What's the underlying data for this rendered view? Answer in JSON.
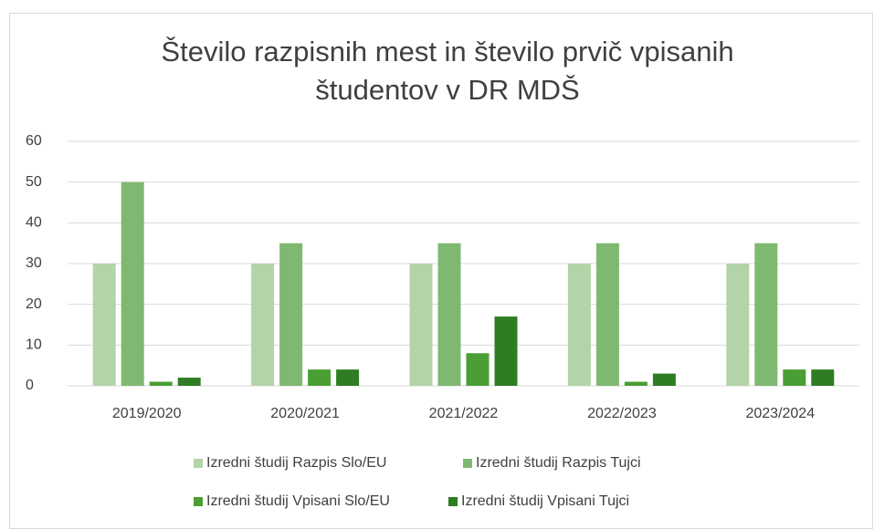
{
  "chart_data": {
    "type": "bar",
    "title": "Število razpisnih mest in število prvič vpisanih študentov v DR MDŠ",
    "categories": [
      "2019/2020",
      "2020/2021",
      "2021/2022",
      "2022/2023",
      "2023/2024"
    ],
    "series": [
      {
        "name": "Izredni študij Razpis Slo/EU",
        "color": "#b3d4a8",
        "values": [
          30,
          30,
          30,
          30,
          30
        ]
      },
      {
        "name": "Izredni študij Razpis Tujci",
        "color": "#7fb870",
        "values": [
          50,
          35,
          35,
          35,
          35
        ]
      },
      {
        "name": "Izredni študij Vpisani Slo/EU",
        "color": "#4a9e34",
        "values": [
          1,
          4,
          8,
          1,
          4
        ]
      },
      {
        "name": "Izredni študij Vpisani Tujci",
        "color": "#2e7d23",
        "values": [
          2,
          4,
          17,
          3,
          4
        ]
      }
    ],
    "ylim": [
      0,
      60
    ],
    "yticks": [
      0,
      10,
      20,
      30,
      40,
      50,
      60
    ],
    "grid": true,
    "legend": "bottom"
  }
}
